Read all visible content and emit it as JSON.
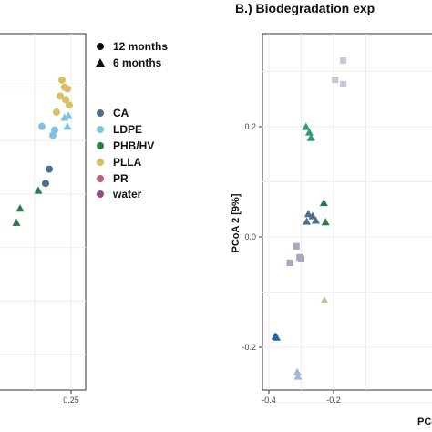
{
  "groups": [
    {
      "name": "CA",
      "color": "#4F6E8F"
    },
    {
      "name": "LDPE",
      "color": "#7EC3DF"
    },
    {
      "name": "PHB/HV",
      "color": "#2A7A45"
    },
    {
      "name": "PLLA",
      "color": "#D9BE66"
    },
    {
      "name": "PR",
      "color": "#B95F77"
    },
    {
      "name": "water",
      "color": "#9C4A8F"
    }
  ],
  "shape_legend": [
    {
      "label": "12 months",
      "shape": "circle"
    },
    {
      "label": "6 months",
      "shape": "triangle"
    }
  ],
  "chart_data": [
    {
      "type": "scatter",
      "title": "",
      "xlabel": "",
      "ylabel": "",
      "x_ticks": [
        "0.25"
      ],
      "series": [
        {
          "name": "CA",
          "points": [
            {
              "x": 0.19,
              "y": 0.62,
              "shape": "circle"
            },
            {
              "x": 0.18,
              "y": 0.58,
              "shape": "circle"
            },
            {
              "x": 0.04,
              "y": 0.47,
              "shape": "circle"
            },
            {
              "x": 0.01,
              "y": 0.46,
              "shape": "circle"
            },
            {
              "x": 0.01,
              "y": 0.28,
              "shape": "circle"
            },
            {
              "x": 0.008,
              "y": 0.26,
              "shape": "circle"
            }
          ]
        },
        {
          "name": "LDPE",
          "points": [
            {
              "x": 0.243,
              "y": 0.77,
              "shape": "triangle"
            },
            {
              "x": 0.232,
              "y": 0.765,
              "shape": "triangle"
            },
            {
              "x": 0.24,
              "y": 0.74,
              "shape": "triangle"
            },
            {
              "x": 0.17,
              "y": 0.74,
              "shape": "circle"
            },
            {
              "x": 0.205,
              "y": 0.73,
              "shape": "circle"
            },
            {
              "x": 0.2,
              "y": 0.715,
              "shape": "circle"
            }
          ]
        },
        {
          "name": "PHB/HV",
          "points": [
            {
              "x": 0.16,
              "y": 0.56,
              "shape": "triangle"
            },
            {
              "x": 0.11,
              "y": 0.51,
              "shape": "triangle"
            },
            {
              "x": 0.1,
              "y": 0.47,
              "shape": "triangle"
            },
            {
              "x": 0.04,
              "y": 0.43,
              "shape": "triangle"
            }
          ]
        },
        {
          "name": "PLLA",
          "points": [
            {
              "x": 0.225,
              "y": 0.87,
              "shape": "circle"
            },
            {
              "x": 0.232,
              "y": 0.85,
              "shape": "circle"
            },
            {
              "x": 0.24,
              "y": 0.845,
              "shape": "circle"
            },
            {
              "x": 0.22,
              "y": 0.825,
              "shape": "circle"
            },
            {
              "x": 0.235,
              "y": 0.815,
              "shape": "circle"
            },
            {
              "x": 0.245,
              "y": 0.8,
              "shape": "circle"
            },
            {
              "x": 0.21,
              "y": 0.78,
              "shape": "circle"
            }
          ]
        },
        {
          "name": "PR",
          "points": [
            {
              "x": 0.005,
              "y": 0.42,
              "shape": "circle"
            },
            {
              "x": 0.02,
              "y": 0.36,
              "shape": "circle"
            }
          ]
        },
        {
          "name": "water",
          "points": [
            {
              "x": 0.015,
              "y": 0.44,
              "shape": "circle"
            }
          ]
        }
      ]
    },
    {
      "type": "scatter",
      "title": "B.) Biodegradation exp",
      "xlabel": "PCo",
      "ylabel": "PCoA 2  [9%]",
      "x_ticks": [
        "-0.4",
        "-0.2"
      ],
      "y_ticks": [
        "0.2",
        "0.0",
        "-0.2"
      ],
      "series": [
        {
          "name": "",
          "color": "#C9C6D6",
          "points": [
            {
              "x": -0.17,
              "y": 0.32,
              "shape": "square"
            },
            {
              "x": -0.195,
              "y": 0.285,
              "shape": "square"
            },
            {
              "x": -0.17,
              "y": 0.277,
              "shape": "square"
            }
          ]
        },
        {
          "name": "",
          "color": "#2E9A78",
          "points": [
            {
              "x": -0.285,
              "y": 0.2,
              "shape": "triangle"
            },
            {
              "x": -0.275,
              "y": 0.19,
              "shape": "triangle"
            },
            {
              "x": -0.27,
              "y": 0.18,
              "shape": "triangle"
            }
          ]
        },
        {
          "name": "",
          "color": "#4F6E8F",
          "points": [
            {
              "x": -0.278,
              "y": 0.042,
              "shape": "triangle"
            },
            {
              "x": -0.265,
              "y": 0.038,
              "shape": "triangle"
            },
            {
              "x": -0.283,
              "y": 0.028,
              "shape": "triangle"
            },
            {
              "x": -0.255,
              "y": 0.03,
              "shape": "triangle"
            }
          ]
        },
        {
          "name": "",
          "color": "#2A7A45",
          "points": [
            {
              "x": -0.23,
              "y": 0.062,
              "shape": "triangle"
            },
            {
              "x": -0.225,
              "y": 0.027,
              "shape": "triangle"
            }
          ]
        },
        {
          "name": "",
          "color": "#A7A8BD",
          "points": [
            {
              "x": -0.315,
              "y": -0.017,
              "shape": "square"
            },
            {
              "x": -0.335,
              "y": -0.047,
              "shape": "square"
            },
            {
              "x": -0.3,
              "y": -0.04,
              "shape": "square"
            },
            {
              "x": -0.305,
              "y": -0.037,
              "shape": "square"
            }
          ]
        },
        {
          "name": "",
          "color": "#B9C39C",
          "points": [
            {
              "x": -0.228,
              "y": -0.115,
              "shape": "triangle"
            }
          ]
        },
        {
          "name": "",
          "color": "#2B63A8",
          "points": [
            {
              "x": -0.38,
              "y": -0.18,
              "shape": "triangle"
            },
            {
              "x": -0.376,
              "y": -0.182,
              "shape": "triangle"
            }
          ]
        },
        {
          "name": "",
          "color": "#9FB9D3",
          "points": [
            {
              "x": -0.312,
              "y": -0.245,
              "shape": "triangle"
            },
            {
              "x": -0.31,
              "y": -0.253,
              "shape": "triangle"
            }
          ]
        }
      ]
    }
  ]
}
